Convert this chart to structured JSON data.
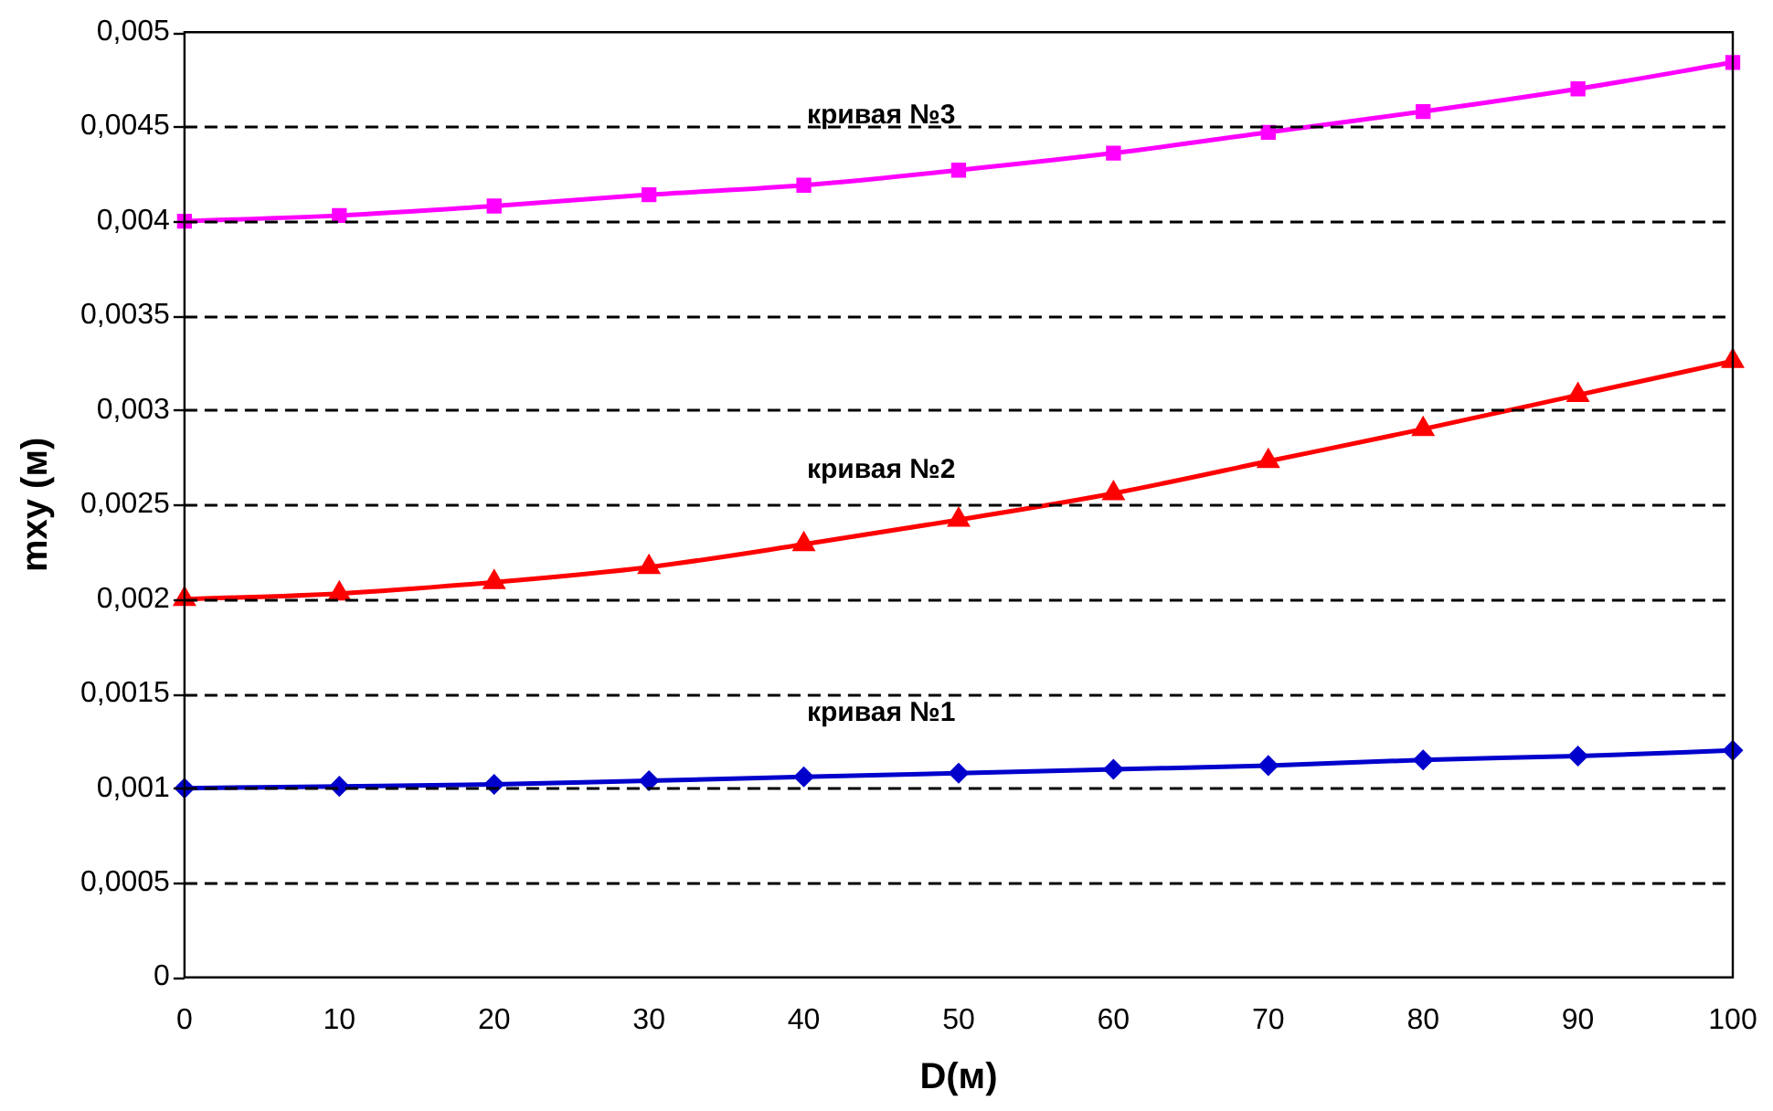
{
  "chart_data": {
    "type": "line",
    "xlabel": "D(м)",
    "ylabel": "mxy (м)",
    "x": [
      0,
      10,
      20,
      30,
      40,
      50,
      60,
      70,
      80,
      90,
      100
    ],
    "series": [
      {
        "name": "кривая №1",
        "color": "#0000cc",
        "marker": "diamond",
        "values": [
          0.001,
          0.00101,
          0.00102,
          0.00104,
          0.00106,
          0.00108,
          0.0011,
          0.00112,
          0.00115,
          0.00117,
          0.0012
        ]
      },
      {
        "name": "кривая №2",
        "color": "#ff0000",
        "marker": "triangle",
        "values": [
          0.002,
          0.00203,
          0.00209,
          0.00217,
          0.00229,
          0.00242,
          0.00256,
          0.00273,
          0.0029,
          0.00308,
          0.00326
        ]
      },
      {
        "name": "кривая №3",
        "color": "#ff00ff",
        "marker": "square",
        "values": [
          0.004,
          0.00403,
          0.00408,
          0.00414,
          0.00419,
          0.00427,
          0.00436,
          0.00447,
          0.00458,
          0.0047,
          0.00484
        ]
      }
    ],
    "xlim": [
      0,
      100
    ],
    "xticks": [
      0,
      10,
      20,
      30,
      40,
      50,
      60,
      70,
      80,
      90,
      100
    ],
    "ylim": [
      0,
      0.005
    ],
    "yticks": [
      {
        "value": 0,
        "label": "0"
      },
      {
        "value": 0.0005,
        "label": "0,0005"
      },
      {
        "value": 0.001,
        "label": "0,001"
      },
      {
        "value": 0.0015,
        "label": "0,0015"
      },
      {
        "value": 0.002,
        "label": "0,002"
      },
      {
        "value": 0.0025,
        "label": "0,0025"
      },
      {
        "value": 0.003,
        "label": "0,003"
      },
      {
        "value": 0.0035,
        "label": "0,0035"
      },
      {
        "value": 0.004,
        "label": "0,004"
      },
      {
        "value": 0.0045,
        "label": "0,0045"
      },
      {
        "value": 0.005,
        "label": "0,005"
      }
    ],
    "grid": "y",
    "legend": false,
    "line_style": "solid"
  }
}
